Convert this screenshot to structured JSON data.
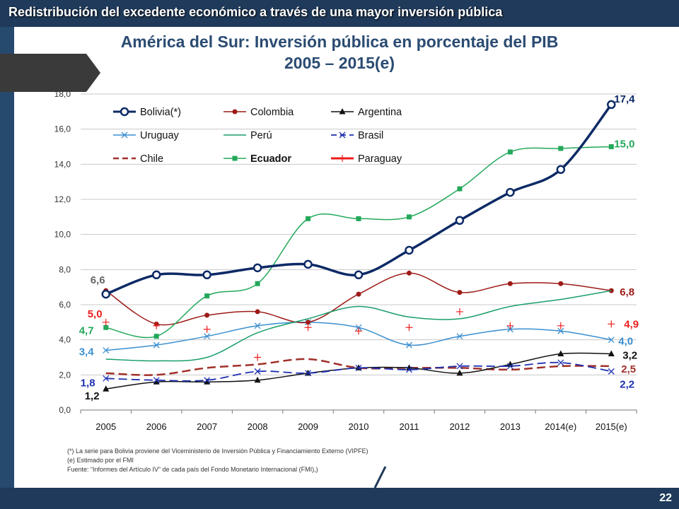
{
  "header": {
    "banner": "Redistribución del excedente económico a través de una mayor inversión pública"
  },
  "slide": {
    "title_line1": "América del Sur: Inversión pública en porcentaje del PIB",
    "title_line2": "2005 – 2015(e)",
    "page_number": "22"
  },
  "footnotes": [
    "(*) La serie para Bolivia proviene del Viceministerio de Inversión Pública y Financiamiento Externo (VIPFE)",
    "(e) Estimado por el FMI",
    "Fuente: “Informes del Artículo IV” de cada país del Fondo Monetario Internacional (FMI),)"
  ],
  "chart_data": {
    "type": "line",
    "categories": [
      "2005",
      "2006",
      "2007",
      "2008",
      "2009",
      "2010",
      "2011",
      "2012",
      "2013",
      "2014(e)",
      "2015(e)"
    ],
    "ylim": [
      0,
      18
    ],
    "yticks": [
      "0,0",
      "2,0",
      "4,0",
      "6,0",
      "8,0",
      "10,0",
      "12,0",
      "14,0",
      "16,0",
      "18,0"
    ],
    "grid": true,
    "legend_position": "top-left",
    "series": [
      {
        "name": "Bolivia(*)",
        "color": "#0d2a66",
        "style": "solid",
        "marker": "circle",
        "width": 3.5,
        "values": [
          6.6,
          7.7,
          7.7,
          8.1,
          8.3,
          7.7,
          9.1,
          10.8,
          12.4,
          13.7,
          17.4
        ]
      },
      {
        "name": "Uruguay",
        "color": "#3a8fd0",
        "style": "solid",
        "marker": "x",
        "width": 1.5,
        "values": [
          3.4,
          3.7,
          4.2,
          4.8,
          5.0,
          4.7,
          3.7,
          4.2,
          4.6,
          4.5,
          4.0
        ]
      },
      {
        "name": "Chile",
        "color": "#a0302a",
        "style": "dashed",
        "marker": "none",
        "width": 2.5,
        "values": [
          2.1,
          2.0,
          2.4,
          2.6,
          2.9,
          2.4,
          2.4,
          2.4,
          2.3,
          2.5,
          2.5
        ]
      },
      {
        "name": "Colombia",
        "color": "#9c1b17",
        "style": "solid",
        "marker": "dot",
        "width": 1.5,
        "values": [
          6.8,
          4.9,
          5.4,
          5.6,
          5.0,
          6.6,
          7.8,
          6.7,
          7.2,
          7.2,
          6.8
        ]
      },
      {
        "name": "Perú",
        "color": "#1a9e6a",
        "style": "solid",
        "marker": "none",
        "width": 1.5,
        "values": [
          2.9,
          2.8,
          3.0,
          4.4,
          5.2,
          5.9,
          5.3,
          5.2,
          5.9,
          6.3,
          6.8
        ]
      },
      {
        "name": "Ecuador",
        "color": "#22a85a",
        "style": "solid",
        "marker": "square",
        "width": 1.5,
        "values": [
          4.7,
          4.2,
          6.5,
          7.2,
          10.9,
          10.9,
          11.0,
          12.6,
          14.7,
          14.9,
          15.0
        ]
      },
      {
        "name": "Argentina",
        "color": "#111111",
        "style": "solid",
        "marker": "triangle",
        "width": 1.5,
        "values": [
          1.2,
          1.6,
          1.6,
          1.7,
          2.1,
          2.4,
          2.4,
          2.1,
          2.6,
          3.2,
          3.2
        ]
      },
      {
        "name": "Brasil",
        "color": "#1c2fb0",
        "style": "dashed",
        "marker": "x",
        "width": 1.8,
        "values": [
          1.8,
          1.7,
          1.7,
          2.2,
          2.1,
          2.4,
          2.3,
          2.5,
          2.5,
          2.7,
          2.2
        ]
      },
      {
        "name": "Paraguay",
        "color": "#ee1c1c",
        "style": "none",
        "marker": "plus",
        "width": 1.2,
        "values": [
          5.0,
          4.8,
          4.6,
          3.0,
          4.7,
          4.5,
          4.7,
          5.6,
          4.8,
          4.8,
          4.9
        ]
      }
    ],
    "annotations": [
      {
        "text": "17,4",
        "series": "Bolivia(*)",
        "index": 10,
        "color": "#0d2a66"
      },
      {
        "text": "15,0",
        "series": "Ecuador",
        "index": 10,
        "color": "#22a85a"
      },
      {
        "text": "6,8",
        "series": "Colombia",
        "index": 10,
        "color": "#9c1b17"
      },
      {
        "text": "4,9",
        "series": "Paraguay",
        "index": 10,
        "color": "#ee1c1c"
      },
      {
        "text": "4,0",
        "series": "Uruguay",
        "index": 10,
        "color": "#3a8fd0"
      },
      {
        "text": "3,2",
        "series": "Argentina",
        "index": 10,
        "color": "#111111"
      },
      {
        "text": "2,5",
        "series": "Chile",
        "index": 10,
        "color": "#a0302a"
      },
      {
        "text": "2,2",
        "series": "Brasil",
        "index": 10,
        "color": "#1c2fb0"
      },
      {
        "text": "6,6",
        "series": "Bolivia(*)",
        "index": 0,
        "color": "#666666"
      },
      {
        "text": "5,0",
        "series": "Paraguay",
        "index": 0,
        "color": "#ee1c1c"
      },
      {
        "text": "4,7",
        "series": "Ecuador",
        "index": 0,
        "color": "#22a85a"
      },
      {
        "text": "3,4",
        "series": "Uruguay",
        "index": 0,
        "color": "#3a8fd0"
      },
      {
        "text": "1,8",
        "series": "Brasil",
        "index": 0,
        "color": "#1c2fb0"
      },
      {
        "text": "1,2",
        "series": "Argentina",
        "index": 0,
        "color": "#111111"
      }
    ]
  }
}
